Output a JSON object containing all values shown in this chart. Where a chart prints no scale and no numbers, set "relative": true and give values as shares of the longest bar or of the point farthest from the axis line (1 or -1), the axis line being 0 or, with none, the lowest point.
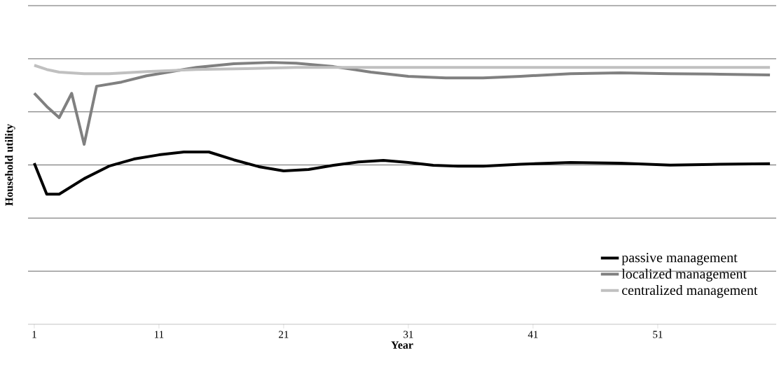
{
  "chart_data": {
    "type": "line",
    "relative": true,
    "xlabel": "Year",
    "ylabel": "Household utility",
    "xlim": [
      0.5,
      60.5
    ],
    "xticks": [
      1,
      11,
      21,
      31,
      41,
      51
    ],
    "grid": "y",
    "legend": "bottom right",
    "marker": "none",
    "line_style": "solid",
    "series": [
      {
        "name": "passive management",
        "color": "#000000",
        "x": [
          1,
          2,
          3,
          5,
          7,
          9,
          11,
          13,
          15,
          17,
          19,
          21,
          23,
          25,
          27,
          29,
          31,
          33,
          35,
          37,
          40,
          44,
          48,
          52,
          56,
          60
        ],
        "values": [
          0.615,
          0.497,
          0.497,
          0.556,
          0.604,
          0.631,
          0.647,
          0.658,
          0.658,
          0.628,
          0.602,
          0.586,
          0.591,
          0.607,
          0.62,
          0.626,
          0.618,
          0.607,
          0.604,
          0.604,
          0.611,
          0.618,
          0.615,
          0.608,
          0.611,
          0.613
        ]
      },
      {
        "name": "localized management",
        "color": "#808080",
        "x": [
          1,
          2,
          3,
          4,
          5,
          6,
          8,
          10,
          12,
          14,
          17,
          20,
          22,
          25,
          28,
          31,
          34,
          37,
          40,
          44,
          48,
          52,
          56,
          60
        ],
        "values": [
          0.882,
          0.832,
          0.789,
          0.882,
          0.687,
          0.909,
          0.925,
          0.949,
          0.965,
          0.981,
          0.995,
          1.0,
          0.997,
          0.984,
          0.963,
          0.947,
          0.941,
          0.941,
          0.947,
          0.957,
          0.96,
          0.957,
          0.955,
          0.952
        ]
      },
      {
        "name": "centralized management",
        "color": "#c0c0c0",
        "x": [
          1,
          2,
          3,
          5,
          7,
          10,
          14,
          18,
          22,
          30,
          40,
          50,
          60
        ],
        "values": [
          0.989,
          0.973,
          0.963,
          0.957,
          0.957,
          0.965,
          0.973,
          0.976,
          0.981,
          0.981,
          0.981,
          0.981,
          0.981
        ]
      }
    ]
  }
}
